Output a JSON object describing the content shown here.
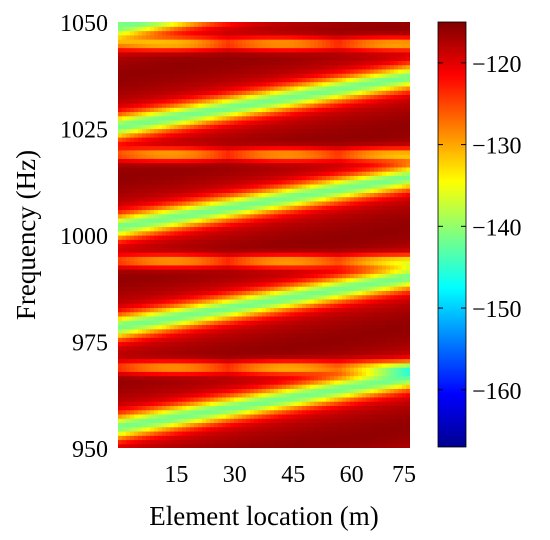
{
  "chart_data": {
    "type": "heatmap",
    "title": "",
    "xlabel": "Element location (m)",
    "ylabel": "Frequency (Hz)",
    "xlim": [
      0,
      75
    ],
    "ylim": [
      950,
      1050
    ],
    "x_ticks": [
      "15",
      "30",
      "45",
      "60",
      "75"
    ],
    "y_ticks": [
      "950",
      "975",
      "1000",
      "1025",
      "1050"
    ],
    "colorbar": {
      "range": [
        -167,
        -115
      ],
      "ticks": [
        "−120",
        "−130",
        "−140",
        "−150",
        "−160"
      ],
      "colormap": "jet"
    },
    "pattern": {
      "description_of_values": "level in dB; maxima near -116 in diagonal lobes, minima near -155 along null lines",
      "max_value": -116,
      "min_value": -155,
      "null_lines": [
        {
          "x": [
            0,
            75
          ],
          "y": [
            955,
            967
          ]
        },
        {
          "x": [
            0,
            75
          ],
          "y": [
            978,
            990
          ]
        },
        {
          "x": [
            0,
            75
          ],
          "y": [
            1003,
            1015
          ]
        },
        {
          "x": [
            0,
            75
          ],
          "y": [
            1026,
            1038
          ]
        }
      ],
      "horizontal_minima_y": [
        969,
        994,
        1019,
        1045
      ]
    }
  }
}
